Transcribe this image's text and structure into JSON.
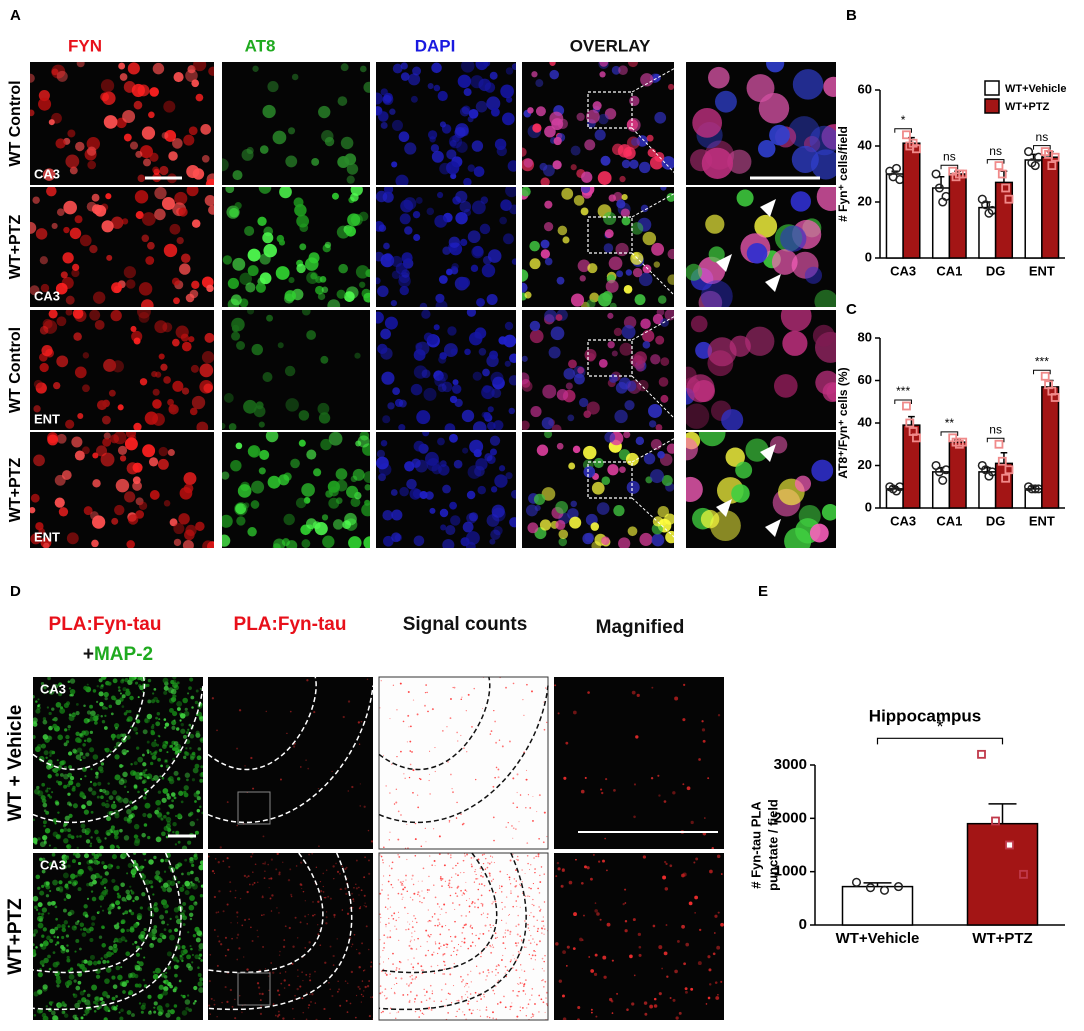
{
  "labels": [
    "A",
    "B",
    "C",
    "D",
    "E"
  ],
  "panel_a": {
    "columns": [
      {
        "text": "FYN",
        "color": "#e8101a"
      },
      {
        "text": "AT8",
        "color": "#1faa1f"
      },
      {
        "text": "DAPI",
        "color": "#1a1ae0"
      },
      {
        "text": "OVERLAY",
        "color": "#111111"
      }
    ],
    "rows": [
      {
        "label": "WT Control",
        "region": "CA3"
      },
      {
        "label": "WT+PTZ",
        "region": "CA3"
      },
      {
        "label": "WT Control",
        "region": "ENT"
      },
      {
        "label": "WT+PTZ",
        "region": "ENT"
      }
    ]
  },
  "panel_d": {
    "col1_line1": "PLA:Fyn-tau",
    "col1_plus": "+",
    "col1_line2": "MAP-2",
    "col2": "PLA:Fyn-tau",
    "col3": "Signal counts",
    "col4": "Magnified",
    "rows": [
      {
        "label": "WT + Vehicle",
        "region": "CA3"
      },
      {
        "label": "WT+PTZ",
        "region": "CA3"
      }
    ]
  },
  "chart_data": [
    {
      "type": "bar",
      "y_label": "# Fyn⁺ cells/field",
      "categories": [
        "CA3",
        "CA1",
        "DG",
        "ENT"
      ],
      "ylim": [
        0,
        60
      ],
      "yticks": [
        0,
        20,
        40,
        60
      ],
      "legend": true,
      "annotations": [
        "*",
        "ns",
        "ns",
        "ns"
      ],
      "series": [
        {
          "name": "WT+Vehicle",
          "color": "#ffffff",
          "point_color": "#222222",
          "marker": "circle",
          "values": [
            30,
            25,
            18,
            35
          ],
          "errors": [
            1,
            4,
            2,
            2
          ],
          "points": [
            [
              31,
              29,
              32,
              28
            ],
            [
              30,
              25,
              20,
              22
            ],
            [
              21,
              19,
              16,
              17
            ],
            [
              38,
              34,
              33,
              36
            ]
          ]
        },
        {
          "name": "WT+PTZ",
          "color": "#a31515",
          "point_color": "#f08a8a",
          "marker": "square",
          "values": [
            41,
            30,
            27,
            36
          ],
          "errors": [
            2,
            1,
            4,
            2
          ],
          "points": [
            [
              44,
              40,
              41,
              39
            ],
            [
              31,
              29,
              30,
              30
            ],
            [
              33,
              30,
              25,
              21
            ],
            [
              38,
              37,
              33,
              36
            ]
          ]
        }
      ]
    },
    {
      "type": "bar",
      "y_label": "AT8⁺/Fyn⁺ cells (%)",
      "categories": [
        "CA3",
        "CA1",
        "DG",
        "ENT"
      ],
      "ylim": [
        0,
        80
      ],
      "yticks": [
        0,
        20,
        40,
        60,
        80
      ],
      "legend": false,
      "annotations": [
        "***",
        "**",
        "ns",
        "***"
      ],
      "series": [
        {
          "name": "WT+Vehicle",
          "color": "#ffffff",
          "point_color": "#222222",
          "marker": "circle",
          "values": [
            9,
            17,
            17,
            9
          ],
          "errors": [
            1,
            2,
            2,
            1
          ],
          "points": [
            [
              10,
              9,
              8,
              10
            ],
            [
              20,
              17,
              13,
              18
            ],
            [
              20,
              18,
              15,
              17
            ],
            [
              10,
              9,
              9,
              9
            ]
          ]
        },
        {
          "name": "WT+PTZ",
          "color": "#a31515",
          "point_color": "#f08a8a",
          "marker": "square",
          "values": [
            39,
            31,
            21,
            57
          ],
          "errors": [
            4,
            1,
            5,
            3
          ],
          "points": [
            [
              48,
              40,
              36,
              33
            ],
            [
              33,
              31,
              30,
              31
            ],
            [
              30,
              22,
              14,
              18
            ],
            [
              62,
              58,
              55,
              52
            ]
          ]
        }
      ]
    },
    {
      "type": "bar",
      "title": "Hippocampus",
      "y_label": [
        "# Fyn-tau PLA",
        "punctate / field"
      ],
      "categories": [
        "WT+Vehicle",
        "WT+PTZ"
      ],
      "ylim": [
        0,
        3000
      ],
      "yticks": [
        0,
        1000,
        2000,
        3000
      ],
      "legend": false,
      "bracket": "*",
      "colors": [
        "#ffffff",
        "#a31515"
      ],
      "point_colors": [
        "#222222",
        "#c0394a"
      ],
      "markers": [
        "circle",
        "square"
      ],
      "values": [
        720,
        1900
      ],
      "errors": [
        70,
        370
      ],
      "points": [
        [
          800,
          700,
          650,
          720
        ],
        [
          3200,
          1950,
          1500,
          950
        ]
      ]
    }
  ]
}
